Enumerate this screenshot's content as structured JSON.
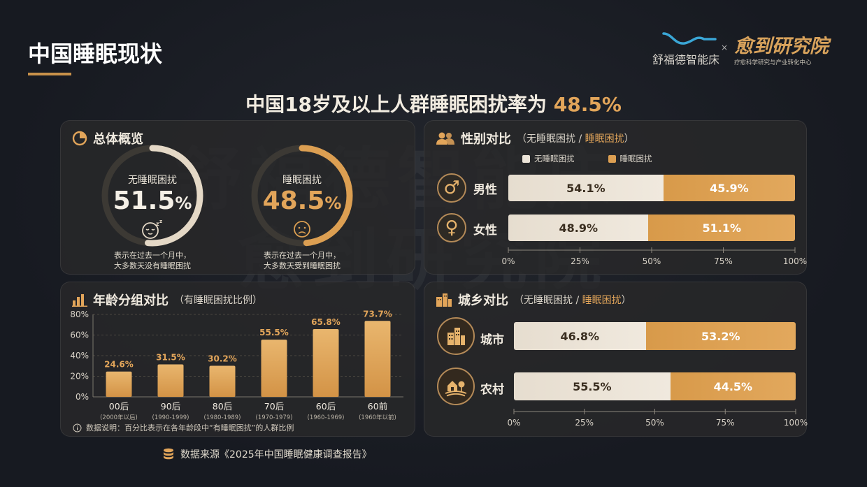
{
  "page": {
    "title": "中国睡眠现状",
    "headline_prefix": "中国18岁及以上人群睡眠困扰率为 ",
    "headline_value": "48.5%"
  },
  "brands": {
    "brand1_name": "舒福德智能床",
    "brand_separator": "×",
    "brand2_name": "愈到研究院",
    "brand2_sub": "疗愈科学研究与产业转化中心"
  },
  "watermark": {
    "line1": "舒福德智能床",
    "line2": "愈到研究院"
  },
  "overview": {
    "title": "总体概览",
    "no_label": "无睡眠困扰",
    "no_value": "51.5",
    "no_note_line1": "表示在过去一个月中，",
    "no_note_line2": "大多数天没有睡眠困扰",
    "yes_label": "睡眠困扰",
    "yes_value": "48.5",
    "yes_note_line1": "表示在过去一个月中，",
    "yes_note_line2": "大多数天受到睡眠困扰",
    "pct_sign": "%"
  },
  "gender": {
    "title": "性别对比",
    "sub_open": "（无睡眠困扰 / ",
    "sub_hi": "睡眠困扰",
    "sub_close": "）",
    "legend_no": "无睡眠困扰",
    "legend_yes": "睡眠困扰"
  },
  "age": {
    "title": "年龄分组对比",
    "subtitle": "（有睡眠困扰比例）",
    "note": "数据说明：百分比表示在各年龄段中“有睡眠困扰”的人群比例"
  },
  "urban": {
    "title": "城乡对比",
    "sub_open": "（无睡眠困扰 / ",
    "sub_hi": "睡眠困扰",
    "sub_close": "）"
  },
  "source": {
    "text": "数据来源《2025年中国睡眠健康调查报告》"
  },
  "colors": {
    "accent": "#e2a55a",
    "no_trouble": "#ece4d8",
    "trouble": "#dc9f52",
    "background": "#171a21"
  },
  "chart_data": [
    {
      "type": "pie",
      "title": "总体概览",
      "categories": [
        "无睡眠困扰",
        "睡眠困扰"
      ],
      "values": [
        51.5,
        48.5
      ]
    },
    {
      "type": "bar",
      "orientation": "horizontal",
      "stacked": true,
      "title": "性别对比",
      "categories": [
        "男性",
        "女性"
      ],
      "series": [
        {
          "name": "无睡眠困扰",
          "values": [
            54.1,
            48.9
          ]
        },
        {
          "name": "睡眠困扰",
          "values": [
            45.9,
            51.1
          ]
        }
      ],
      "xlim": [
        0,
        100
      ],
      "ticks": [
        "0%",
        "25%",
        "50%",
        "75%",
        "100%"
      ],
      "legend": "top"
    },
    {
      "type": "bar",
      "title": "年龄分组对比",
      "categories": [
        "00后",
        "90后",
        "80后",
        "70后",
        "60后",
        "60前"
      ],
      "sublabels": [
        "(2000年以后)",
        "(1990-1999)",
        "(1980-1989)",
        "(1970-1979)",
        "(1960-1969)",
        "(1960年以前)"
      ],
      "values": [
        24.6,
        31.5,
        30.2,
        55.5,
        65.8,
        73.7
      ],
      "ylim": [
        0,
        80
      ],
      "yticks": [
        "0%",
        "20%",
        "40%",
        "60%",
        "80%"
      ],
      "grid": true
    },
    {
      "type": "bar",
      "orientation": "horizontal",
      "stacked": true,
      "title": "城乡对比",
      "categories": [
        "城市",
        "农村"
      ],
      "series": [
        {
          "name": "无睡眠困扰",
          "values": [
            46.8,
            55.5
          ]
        },
        {
          "name": "睡眠困扰",
          "values": [
            53.2,
            44.5
          ]
        }
      ],
      "xlim": [
        0,
        100
      ],
      "ticks": [
        "0%",
        "25%",
        "50%",
        "75%",
        "100%"
      ]
    }
  ]
}
